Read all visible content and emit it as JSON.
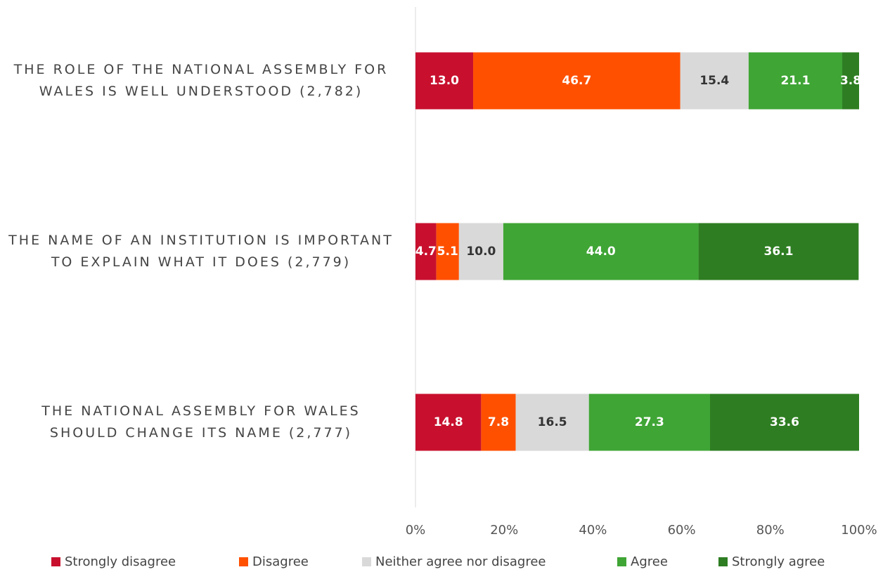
{
  "chart_data": {
    "type": "stacked-barh",
    "categories": [
      "THE ROLE OF THE NATIONAL ASSEMBLY FOR WALES IS WELL UNDERSTOOD (2,782)",
      "THE NAME OF AN INSTITUTION IS IMPORTANT TO EXPLAIN WHAT IT DOES (2,779)",
      "THE NATIONAL ASSEMBLY FOR WALES SHOULD CHANGE ITS NAME (2,777)"
    ],
    "series": [
      {
        "name": "Strongly disagree",
        "color": "#c8102e",
        "values": [
          13.0,
          4.7,
          14.8
        ],
        "value_labels": [
          "13.0",
          "4.7",
          "14.8"
        ]
      },
      {
        "name": "Disagree",
        "color": "#ff5000",
        "values": [
          46.7,
          5.1,
          7.8
        ],
        "value_labels": [
          "46.7",
          "5.1",
          "7.8"
        ]
      },
      {
        "name": "Neither agree nor disagree",
        "color": "#d9d9d9",
        "values": [
          15.4,
          10.0,
          16.5
        ],
        "value_labels": [
          "15.4",
          "10.0",
          "16.5"
        ]
      },
      {
        "name": "Agree",
        "color": "#3fa535",
        "values": [
          21.1,
          44.0,
          27.3
        ],
        "value_labels": [
          "21.1",
          "44.0",
          "27.3"
        ]
      },
      {
        "name": "Strongly agree",
        "color": "#2e7d22",
        "values": [
          3.8,
          36.1,
          33.6
        ],
        "value_labels": [
          "3.8",
          "36.1",
          "33.6"
        ]
      }
    ],
    "xlim": [
      0,
      100
    ],
    "xticks": [
      {
        "value": 0,
        "label": "0%"
      },
      {
        "value": 20,
        "label": "20%"
      },
      {
        "value": 40,
        "label": "40%"
      },
      {
        "value": 60,
        "label": "60%"
      },
      {
        "value": 80,
        "label": "80%"
      },
      {
        "value": 100,
        "label": "100%"
      }
    ],
    "legend": "bottom"
  }
}
